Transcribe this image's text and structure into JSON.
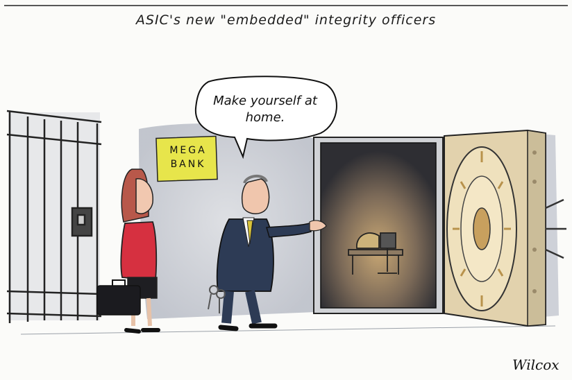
{
  "cartoon": {
    "title": "ASIC's new \"embedded\" integrity officers",
    "speech": "Make yourself at home.",
    "sign_line1": "MEGA",
    "sign_line2": "BANK",
    "signature": "Wilcox"
  },
  "colors": {
    "paper": "#fbfbf9",
    "wall_grey": "#c9ccd2",
    "sign_yellow": "#e7e54b",
    "vault_dark": "#3a3a3f",
    "vault_door": "#e2d2ad",
    "suit_navy": "#2d3b55",
    "woman_red": "#d63040",
    "tie_yellow": "#d8c33a",
    "ink": "#111111"
  }
}
